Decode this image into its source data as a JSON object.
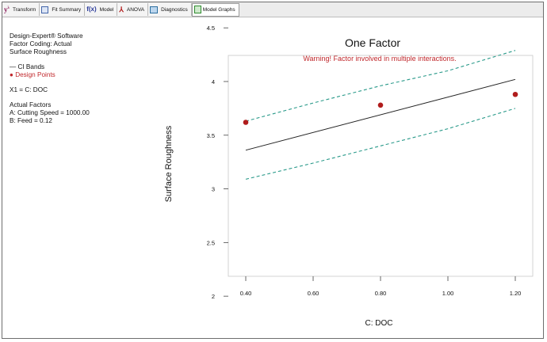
{
  "toolbar": {
    "tabs": [
      {
        "label": "Transform",
        "icon": "transform-y-icon"
      },
      {
        "label": "Fit Summary",
        "icon": "fit-summary-icon"
      },
      {
        "label": "Model",
        "icon": "fx-icon"
      },
      {
        "label": "ANOVA",
        "icon": "anova-icon"
      },
      {
        "label": "Diagnostics",
        "icon": "diagnostics-icon"
      },
      {
        "label": "Model Graphs",
        "icon": "model-graphs-icon"
      }
    ]
  },
  "info": {
    "software": "Design-Expert® Software",
    "coding": "Factor Coding: Actual",
    "response": "Surface Roughness",
    "legend_ci": "— CI Bands",
    "legend_points": "● Design Points",
    "x1": "X1 = C: DOC",
    "actual_factors_title": "Actual Factors",
    "factor_a": "A: Cutting Speed = 1000.00",
    "factor_b": "B: Feed = 0.12"
  },
  "colors": {
    "point": "#b01c1c",
    "ci_band": "#2a9a8a",
    "fit_line": "#222222",
    "warning": "#c0282c"
  },
  "chart_data": {
    "type": "line",
    "title": "One Factor",
    "warning": "Warning! Factor involved in multiple interactions.",
    "xlabel": "C: DOC",
    "ylabel": "Surface Roughness",
    "xlim": [
      0.4,
      1.2
    ],
    "ylim": [
      1.9,
      4.55
    ],
    "x_ticks": [
      0.4,
      0.6,
      0.8,
      1.0,
      1.2
    ],
    "x_tick_labels": [
      "0.40",
      "0.60",
      "0.80",
      "1.00",
      "1.20"
    ],
    "y_ticks": [
      2,
      2.5,
      3,
      3.5,
      4,
      4.5
    ],
    "y_tick_labels": [
      "2",
      "2.5",
      "3",
      "3.5",
      "4",
      "4.5"
    ],
    "series": [
      {
        "kind": "fit",
        "x": [
          0.4,
          1.2
        ],
        "y": [
          3.36,
          4.02
        ]
      },
      {
        "kind": "ci_upper",
        "x": [
          0.4,
          0.6,
          0.8,
          1.0,
          1.2
        ],
        "y": [
          3.63,
          3.8,
          3.96,
          4.1,
          4.29
        ]
      },
      {
        "kind": "ci_lower",
        "x": [
          0.4,
          0.6,
          0.8,
          1.0,
          1.2
        ],
        "y": [
          3.09,
          3.24,
          3.4,
          3.56,
          3.75
        ]
      }
    ],
    "points": {
      "x": [
        0.4,
        0.8,
        1.2
      ],
      "y": [
        3.62,
        3.78,
        3.88
      ]
    }
  }
}
